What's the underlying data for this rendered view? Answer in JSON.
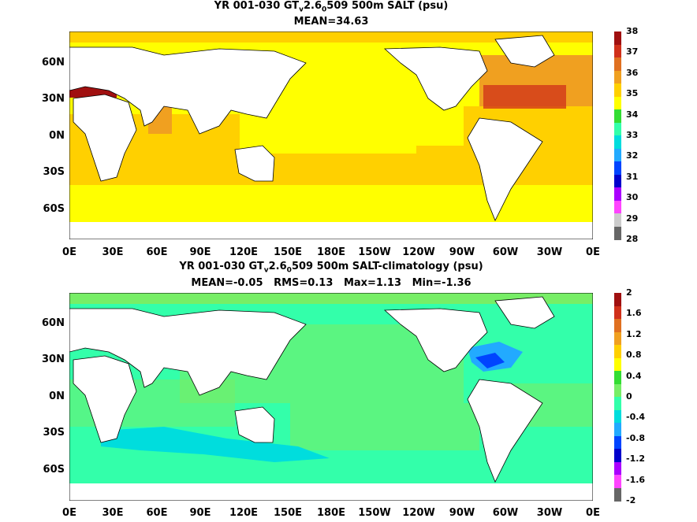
{
  "panels": [
    {
      "title_line1": {
        "prefix": "YR 001-030 GT",
        "sub1": "v",
        "mid": "2.6",
        "sub2": "0",
        "suffix": "509 500m SALT (psu)"
      },
      "title_line2": "MEAN=34.63",
      "ylabels": [
        "60N",
        "30N",
        "0N",
        "30S",
        "60S"
      ],
      "xlabels": [
        "0E",
        "30E",
        "60E",
        "90E",
        "120E",
        "150E",
        "180E",
        "150W",
        "120W",
        "90W",
        "60W",
        "30W",
        "0E"
      ],
      "colorbar": {
        "labels": [
          "38",
          "37",
          "36",
          "35",
          "34",
          "33",
          "32",
          "31",
          "30",
          "29",
          "28"
        ],
        "colors": [
          "#a01010",
          "#d0301a",
          "#e07020",
          "#f0a020",
          "#ffd000",
          "#ffff00",
          "#33dd33",
          "#33ffaa",
          "#00dddd",
          "#22aaff",
          "#0044ff",
          "#0000cc",
          "#aa00ff",
          "#ff44ff",
          "#cccccc",
          "#666666"
        ]
      }
    },
    {
      "title_line1": {
        "prefix": "YR 001-030 GT",
        "sub1": "v",
        "mid": "2.6",
        "sub2": "0",
        "suffix": "509 500m SALT-climatology (psu)"
      },
      "title_line2": "MEAN=-0.05   RMS=0.13   Max=1.13   Min=-1.36",
      "ylabels": [
        "60N",
        "30N",
        "0N",
        "30S",
        "60S"
      ],
      "xlabels": [
        "0E",
        "30E",
        "60E",
        "90E",
        "120E",
        "150E",
        "180E",
        "150W",
        "120W",
        "90W",
        "60W",
        "30W",
        "0E"
      ],
      "colorbar": {
        "labels": [
          "2",
          "1.6",
          "1.2",
          "0.8",
          "0.4",
          "0",
          "-0.4",
          "-0.8",
          "-1.2",
          "-1.6",
          "-2"
        ],
        "colors": [
          "#a01010",
          "#d0301a",
          "#e07020",
          "#f0a020",
          "#ffd000",
          "#ffff00",
          "#33dd33",
          "#77ee66",
          "#33ffaa",
          "#00dddd",
          "#22aaff",
          "#0044ff",
          "#0000cc",
          "#aa00ff",
          "#ff44ff",
          "#666666"
        ]
      }
    }
  ]
}
